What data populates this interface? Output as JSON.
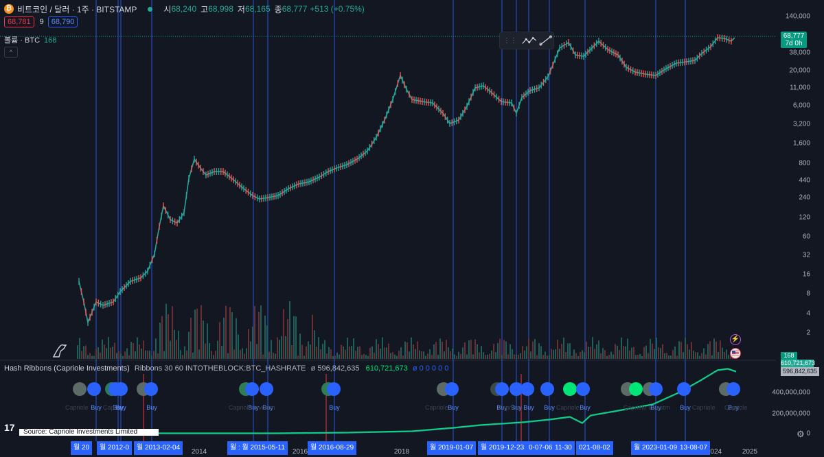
{
  "header": {
    "symbol": "비트코인 / 달러 · 1주 · BITSTAMP",
    "open_label": "시",
    "open": "68,240",
    "high_label": "고",
    "high": "68,998",
    "low_label": "저",
    "low": "68,165",
    "close_label": "종",
    "close": "68,777",
    "change": "+513 (+0.75%)"
  },
  "quote": {
    "bid": "68,781",
    "spread": "9",
    "ask": "68,790"
  },
  "volume_legend": {
    "label": "볼륨 · BTC",
    "value": "168"
  },
  "indicator_legend": {
    "name": "Hash Ribbons (Capriole Investments)",
    "params": "Ribbons 30 60 INTOTHEBLOCK:BTC_HASHRATE",
    "v1": "ø 596,842,635",
    "v2": "610,721,673",
    "v3": "ø 0 0 0 0 0"
  },
  "price_axis": [
    "140,000",
    "68,777",
    "38,000",
    "20,000",
    "11,000",
    "6,000",
    "3,200",
    "1,600",
    "800",
    "440",
    "240",
    "120",
    "60",
    "32",
    "16",
    "8",
    "4",
    "2"
  ],
  "indicator_axis": [
    "400,000,000",
    "200,000,000",
    "0"
  ],
  "last_price_tag": {
    "price": "68,777",
    "countdown": "7d 0h"
  },
  "volume_tag": "168",
  "indicator_tags": [
    "610,721,673",
    "596,842,635"
  ],
  "time_axis": {
    "years": [
      "2014",
      "2016",
      "2018",
      "2024",
      "2025"
    ]
  },
  "date_markers": [
    "월 20",
    "월 2012-0",
    "월 2013-02-04",
    "월 : 월 2015-05-11",
    "월 2016-08-29",
    "월 2019-01-07",
    "월 2019-12-23",
    "0-07-06",
    "11-30",
    "021-08-02",
    "월 2023-01-09",
    "13-08-07"
  ],
  "buy_label": "Buy",
  "faint_labels": [
    "Capriole",
    "Capri",
    "Capriole Investm",
    "Capriole",
    "Capriole",
    "Capriole",
    "Capriole Investm",
    "Capriole",
    "Capriole",
    "Capriole"
  ],
  "source": "Source: Capriole Investments Limited",
  "tv_logo": "17",
  "colors": {
    "background": "#131722",
    "up": "#26a69a",
    "down": "#ef5350",
    "signal_line": "#2962ff",
    "hash_line": "#00e676",
    "accent_red": "#f23645"
  },
  "icons": [
    "bitcoin-icon",
    "drawing-grip-icon",
    "path-tool-icon",
    "trendline-tool-icon",
    "flash-icon",
    "us-flag-icon",
    "settings-gear-icon",
    "dino-icon",
    "tradingview-logo"
  ]
}
